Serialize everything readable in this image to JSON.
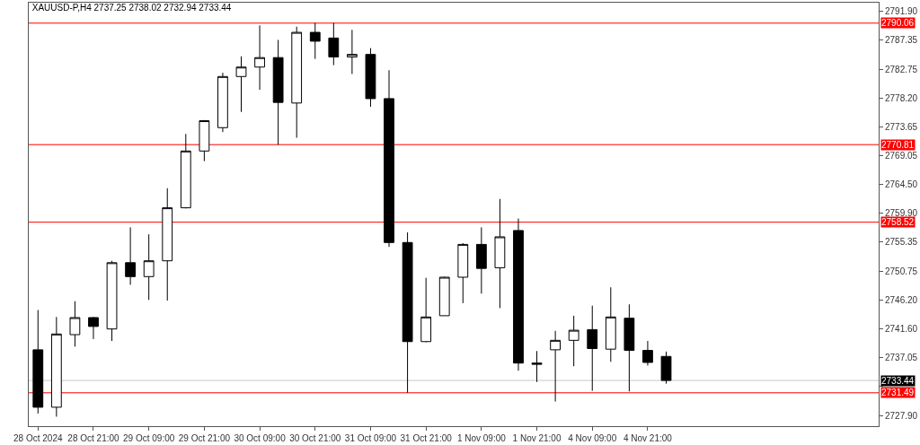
{
  "chart_data": {
    "type": "candlestick",
    "title": "XAUUSD-P,H4 2737.25 2738.02 2732.94 2733.44",
    "color": "#000000",
    "categories": [
      "28 Oct 2024",
      null,
      null,
      "28 Oct 21:00",
      null,
      null,
      "29 Oct 09:00",
      null,
      null,
      "29 Oct 21:00",
      null,
      null,
      "30 Oct 09:00",
      null,
      null,
      "30 Oct 21:00",
      null,
      null,
      "31 Oct 09:00",
      null,
      null,
      "31 Oct 21:00",
      null,
      null,
      "1 Nov 09:00",
      null,
      null,
      "1 Nov 21:00",
      null,
      null,
      "4 Nov 09:00",
      null,
      null,
      "4 Nov 21:00",
      null,
      null,
      null,
      null,
      null,
      null,
      null,
      null,
      null,
      null,
      null,
      null
    ],
    "ohlc": [
      [
        2738.3,
        2744.6,
        2728.2,
        2729.2
      ],
      [
        2729.2,
        2743.5,
        2727.7,
        2740.8
      ],
      [
        2740.7,
        2746.0,
        2738.8,
        2743.4
      ],
      [
        2743.4,
        2743.5,
        2740.0,
        2742.0
      ],
      [
        2741.6,
        2752.4,
        2739.7,
        2752.1
      ],
      [
        2752.1,
        2757.7,
        2748.6,
        2749.9
      ],
      [
        2749.9,
        2756.6,
        2746.2,
        2752.4
      ],
      [
        2752.4,
        2763.9,
        2746.1,
        2760.8
      ],
      [
        2760.8,
        2772.5,
        2760.7,
        2769.8
      ],
      [
        2769.8,
        2774.7,
        2768.2,
        2774.6
      ],
      [
        2773.5,
        2782.2,
        2772.8,
        2781.6
      ],
      [
        2781.6,
        2784.8,
        2776.0,
        2783.1
      ],
      [
        2783.1,
        2789.7,
        2779.5,
        2784.6
      ],
      [
        2784.6,
        2787.4,
        2770.8,
        2777.5
      ],
      [
        2777.4,
        2789.5,
        2771.9,
        2788.6
      ],
      [
        2788.6,
        2790.1,
        2784.4,
        2787.2
      ],
      [
        2787.7,
        2790.1,
        2783.4,
        2784.7
      ],
      [
        2784.7,
        2789.0,
        2782.0,
        2785.1
      ],
      [
        2785.1,
        2786.1,
        2776.8,
        2778.1
      ],
      [
        2778.1,
        2782.6,
        2754.6,
        2755.3
      ],
      [
        2755.3,
        2756.9,
        2731.5,
        2739.6
      ],
      [
        2739.6,
        2749.7,
        2739.5,
        2743.5
      ],
      [
        2743.7,
        2749.9,
        2743.7,
        2749.8
      ],
      [
        2749.8,
        2755.2,
        2745.7,
        2755.0
      ],
      [
        2755.0,
        2757.7,
        2747.2,
        2751.2
      ],
      [
        2751.3,
        2762.2,
        2744.9,
        2756.2
      ],
      [
        2757.2,
        2759.1,
        2735.0,
        2736.2
      ],
      [
        2736.2,
        2738.1,
        2733.2,
        2736.0
      ],
      [
        2738.3,
        2741.3,
        2730.1,
        2739.8
      ],
      [
        2739.8,
        2743.7,
        2735.7,
        2741.4
      ],
      [
        2741.5,
        2745.3,
        2731.8,
        2738.5
      ],
      [
        2738.4,
        2748.2,
        2736.4,
        2743.5
      ],
      [
        2743.3,
        2745.5,
        2731.7,
        2738.2
      ],
      [
        2738.2,
        2739.7,
        2735.8,
        2736.3
      ],
      [
        2737.25,
        2738.02,
        2732.94,
        2733.44
      ],
      null,
      null,
      null,
      null,
      null,
      null,
      null,
      null,
      null,
      null,
      null
    ],
    "ylim": [
      2726.2,
      2793.3
    ],
    "yticks": [
      {
        "value": 2791.9,
        "label": "2791.90"
      },
      {
        "value": 2787.35,
        "label": "2787.35"
      },
      {
        "value": 2782.75,
        "label": "2782.75"
      },
      {
        "value": 2778.2,
        "label": "2778.20"
      },
      {
        "value": 2773.65,
        "label": "2773.65"
      },
      {
        "value": 2769.05,
        "label": "2769.05"
      },
      {
        "value": 2764.5,
        "label": "2764.50"
      },
      {
        "value": 2759.9,
        "label": "2759.90"
      },
      {
        "value": 2755.35,
        "label": "2755.35"
      },
      {
        "value": 2750.75,
        "label": "2750.75"
      },
      {
        "value": 2746.2,
        "label": "2746.20"
      },
      {
        "value": 2741.6,
        "label": "2741.60"
      },
      {
        "value": 2737.05,
        "label": "2737.05"
      },
      {
        "value": 2732.5,
        "label": null
      },
      {
        "value": 2727.9,
        "label": "2727.90"
      }
    ],
    "ref_lines": [
      {
        "axis": "y",
        "value": 2790.06,
        "label": "2790.06",
        "color": "#ff0000"
      },
      {
        "axis": "y",
        "value": 2770.81,
        "label": "2770.81",
        "color": "#ff0000"
      },
      {
        "axis": "y",
        "value": 2758.52,
        "label": "2758.52",
        "color": "#ff0000"
      },
      {
        "axis": "y",
        "value": 2731.49,
        "label": "2731.49",
        "color": "#ff0000"
      },
      {
        "axis": "y",
        "value": 2733.44,
        "label": "2733.44",
        "color": "#c8c8c8"
      }
    ]
  }
}
